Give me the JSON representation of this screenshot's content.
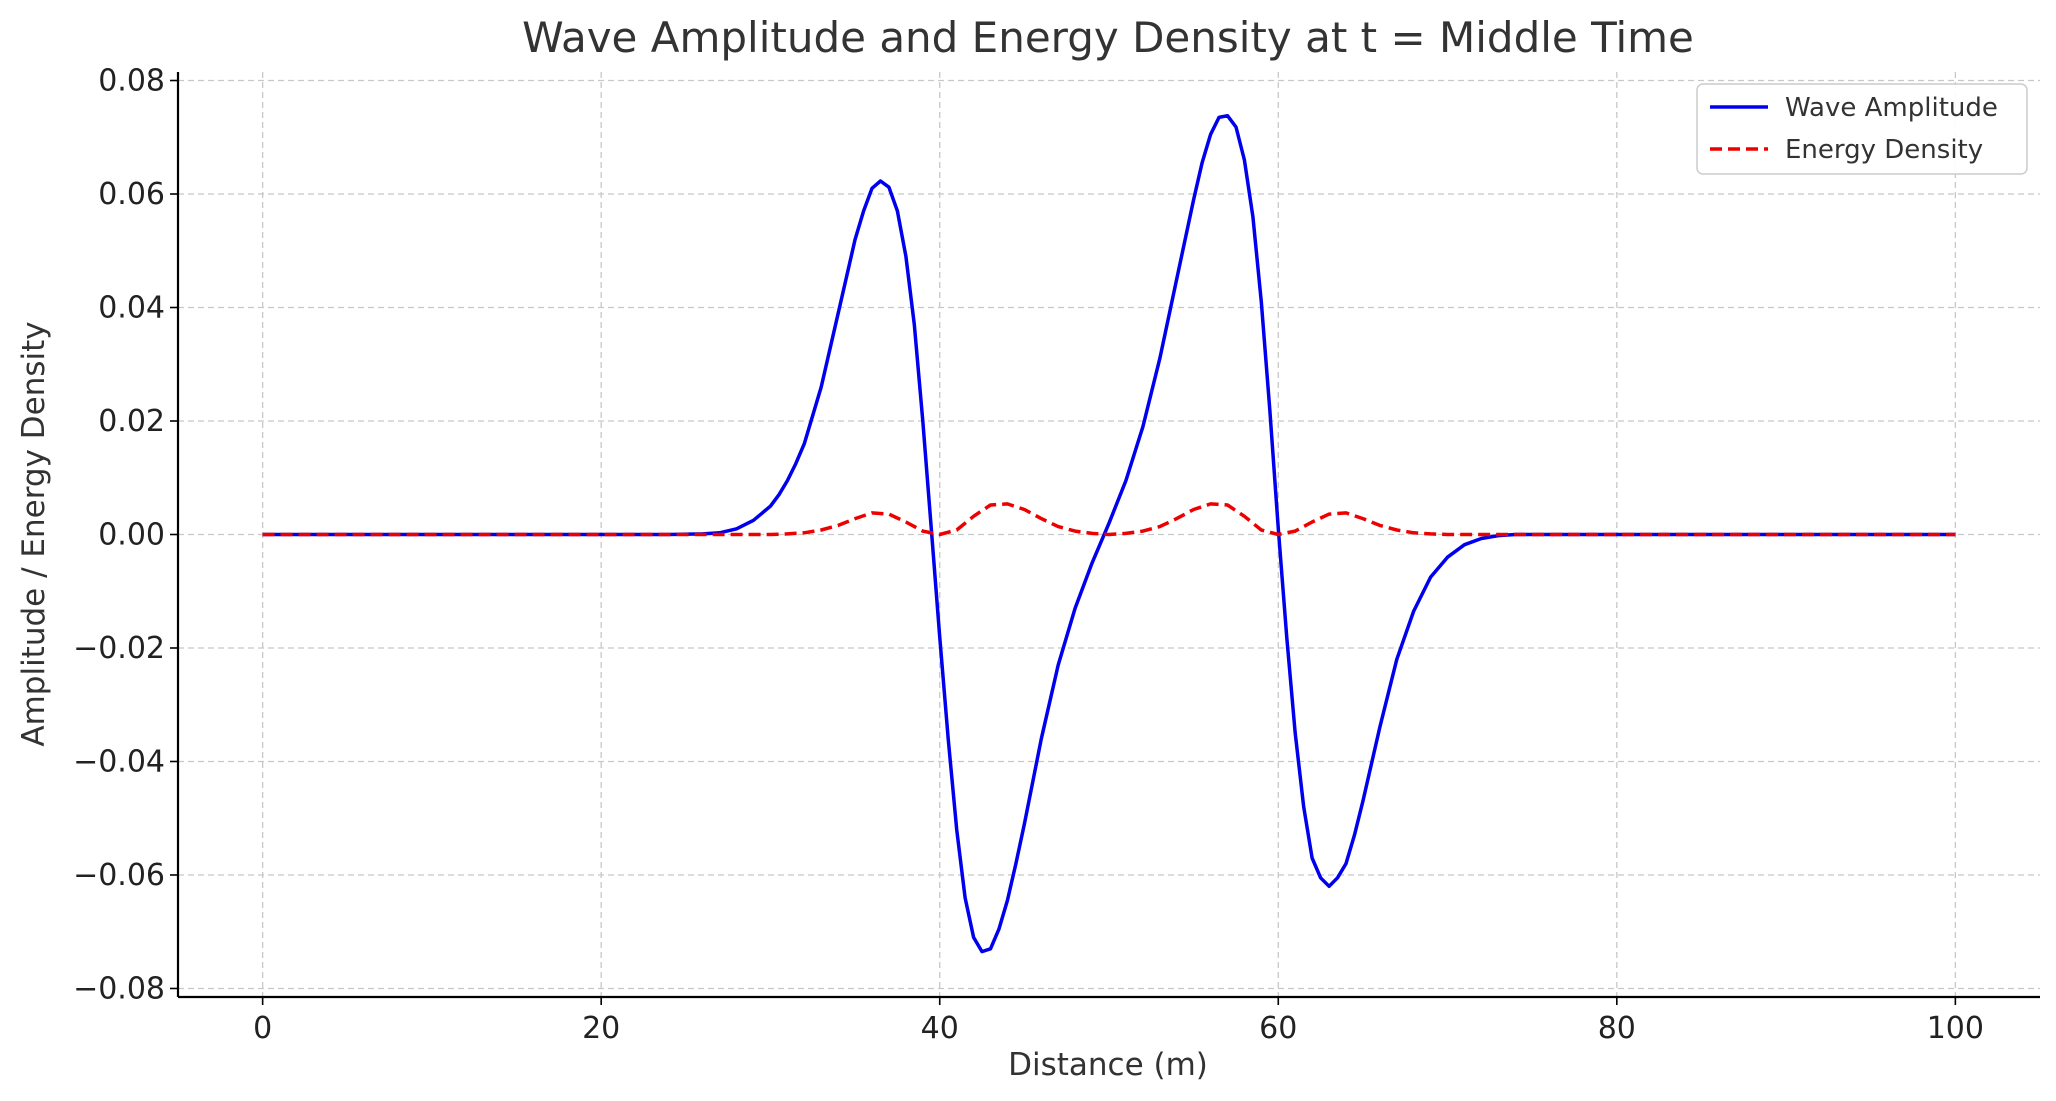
{
  "chart_data": {
    "type": "line",
    "title": "Wave Amplitude and Energy Density at t = Middle Time",
    "xlabel": "Distance (m)",
    "ylabel": "Amplitude / Energy Density",
    "xlim": [
      -5,
      105
    ],
    "ylim": [
      -0.0815,
      0.0815
    ],
    "xticks": [
      0,
      20,
      40,
      60,
      80,
      100
    ],
    "xtick_labels": [
      "0",
      "20",
      "40",
      "60",
      "80",
      "100"
    ],
    "yticks": [
      0.08,
      0.06,
      0.04,
      0.02,
      0.0,
      -0.02,
      -0.04,
      -0.06,
      -0.08
    ],
    "ytick_labels": [
      "0.08",
      "0.06",
      "0.04",
      "0.02",
      "0.00",
      "−0.02",
      "−0.04",
      "−0.06",
      "−0.08"
    ],
    "grid": true,
    "legend_position": "top-right",
    "series": [
      {
        "name": "Wave Amplitude",
        "color": "#0000ee",
        "style": "solid",
        "x": [
          0,
          10,
          20,
          24,
          26,
          27,
          28,
          29,
          30,
          30.5,
          31,
          31.5,
          32,
          33,
          34,
          35,
          35.5,
          36,
          36.5,
          37,
          37.5,
          38,
          38.5,
          39,
          39.5,
          40,
          40.5,
          41,
          41.5,
          42,
          42.5,
          43,
          43.5,
          44,
          44.5,
          45,
          46,
          47,
          48,
          49,
          50,
          51,
          52,
          53,
          54,
          55,
          55.5,
          56,
          56.5,
          57,
          57.5,
          58,
          58.5,
          59,
          59.5,
          60,
          60.5,
          61,
          61.5,
          62,
          62.5,
          63,
          63.5,
          64,
          64.5,
          65,
          66,
          67,
          68,
          69,
          70,
          71,
          72,
          73,
          74,
          76,
          80,
          90,
          100
        ],
        "y": [
          0.0,
          0.0,
          0.0,
          0.0,
          0.0001,
          0.0003,
          0.001,
          0.0025,
          0.005,
          0.007,
          0.0095,
          0.0125,
          0.016,
          0.026,
          0.039,
          0.052,
          0.057,
          0.061,
          0.0623,
          0.0612,
          0.057,
          0.049,
          0.037,
          0.02,
          0.001,
          -0.018,
          -0.036,
          -0.052,
          -0.064,
          -0.071,
          -0.0735,
          -0.073,
          -0.0695,
          -0.0645,
          -0.058,
          -0.051,
          -0.036,
          -0.023,
          -0.013,
          -0.005,
          0.002,
          0.0095,
          0.019,
          0.031,
          0.045,
          0.059,
          0.0655,
          0.0705,
          0.0735,
          0.0738,
          0.0718,
          0.066,
          0.056,
          0.041,
          0.022,
          0.001,
          -0.018,
          -0.035,
          -0.048,
          -0.057,
          -0.0605,
          -0.062,
          -0.0605,
          -0.058,
          -0.053,
          -0.047,
          -0.034,
          -0.022,
          -0.0135,
          -0.0075,
          -0.004,
          -0.0018,
          -0.0007,
          -0.0002,
          0.0,
          0.0,
          0.0,
          0.0,
          0.0
        ]
      },
      {
        "name": "Energy Density",
        "color": "#ee0000",
        "style": "dashed",
        "x": [
          0,
          10,
          20,
          25,
          28,
          30,
          31,
          32,
          33,
          34,
          35,
          36,
          37,
          38,
          39,
          40,
          41,
          42,
          43,
          44,
          45,
          46,
          47,
          48,
          49,
          50,
          51,
          52,
          53,
          54,
          55,
          56,
          57,
          58,
          59,
          60,
          61,
          62,
          63,
          64,
          65,
          66,
          67,
          68,
          69,
          70,
          72,
          80,
          90,
          100
        ],
        "y": [
          0.0,
          0.0,
          0.0,
          0.0,
          0.0,
          0.0,
          0.0001,
          0.0003,
          0.0008,
          0.0016,
          0.0028,
          0.0038,
          0.0036,
          0.0022,
          0.0006,
          0.0,
          0.0008,
          0.0032,
          0.0052,
          0.0054,
          0.0044,
          0.0028,
          0.0014,
          0.0006,
          0.0002,
          0.0,
          0.0002,
          0.0006,
          0.0014,
          0.0028,
          0.0044,
          0.0054,
          0.0052,
          0.0032,
          0.0008,
          0.0,
          0.0006,
          0.0022,
          0.0036,
          0.0038,
          0.0028,
          0.0016,
          0.0008,
          0.0003,
          0.0001,
          0.0,
          0.0,
          0.0,
          0.0,
          0.0
        ]
      }
    ]
  }
}
